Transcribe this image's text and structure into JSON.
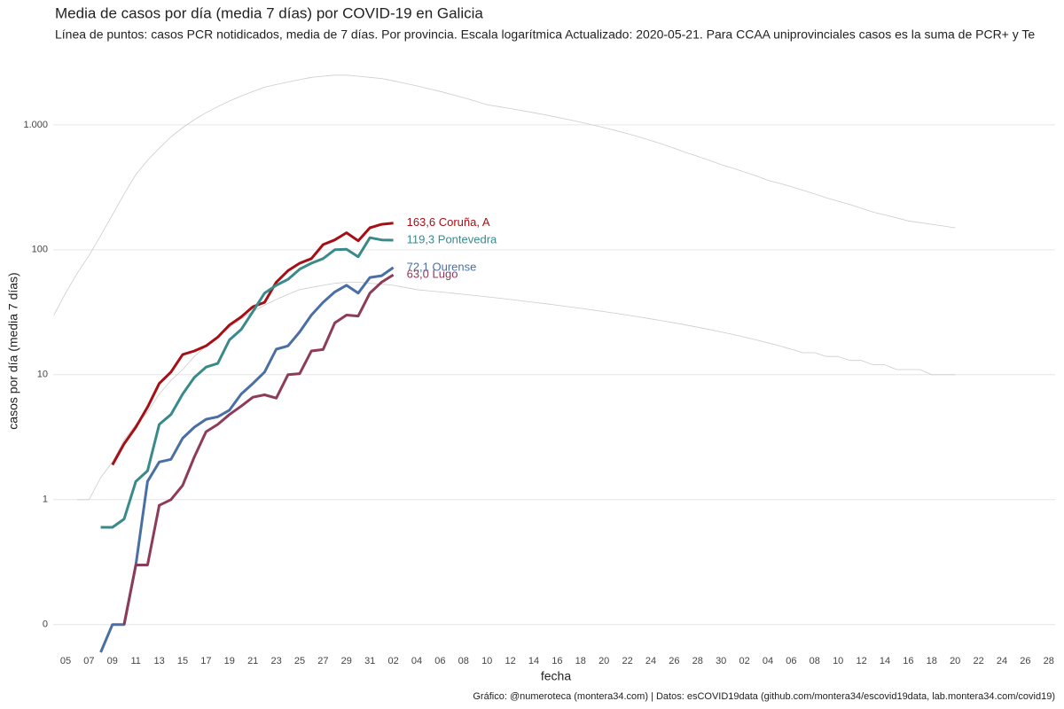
{
  "chart_data": {
    "type": "line",
    "title": "Media de casos por día (media 7 días) por COVID-19 en Galicia",
    "subtitle": "Línea de puntos: casos PCR notidicados, media de 7 días. Por provincia. Escala logarítmica  Actualizado: 2020-05-21. Para CCAA uniprovinciales casos es la suma de PCR+ y Te",
    "x_label": "fecha",
    "y_label": "casos por día (media 7 días)",
    "caption": "Gráfico: @numeroteca (montera34.com) | Datos: esCOVID19data (github.com/montera34/escovid19data, lab.montera34.com/covid19)",
    "log_scale": true,
    "grid": true,
    "ylim": [
      0.06,
      4000
    ],
    "yticks": [
      {
        "value": 0.1,
        "label": "0"
      },
      1,
      10,
      100,
      {
        "value": 1000,
        "label": "1.000"
      }
    ],
    "categories": [
      null,
      "05",
      null,
      "07",
      null,
      "09",
      null,
      "11",
      null,
      "13",
      null,
      "15",
      null,
      "17",
      null,
      "19",
      null,
      "21",
      null,
      "23",
      null,
      "25",
      null,
      "27",
      null,
      "29",
      null,
      "31",
      null,
      "02",
      null,
      "04",
      null,
      "06",
      null,
      "08",
      null,
      "10",
      null,
      "12",
      null,
      "14",
      null,
      "16",
      null,
      "18",
      null,
      "20",
      null,
      "22",
      null,
      "24",
      null,
      "26",
      null,
      "28",
      null,
      "30",
      null,
      "02",
      null,
      "04",
      null,
      "06",
      null,
      "08",
      null,
      "10",
      null,
      "12",
      null,
      "14",
      null,
      "16",
      null,
      "18",
      null,
      "20",
      null,
      "22",
      null,
      "24",
      null,
      "26",
      null,
      "28",
      null
    ],
    "series": [
      {
        "color": "#cccccc",
        "width": 0.8,
        "values": [
          30,
          45,
          65,
          90,
          130,
          190,
          280,
          400,
          520,
          650,
          800,
          950,
          1100,
          1250,
          1400,
          1550,
          1700,
          1850,
          2000,
          2100,
          2200,
          2300,
          2400,
          2450,
          2500,
          2500,
          2450,
          2400,
          2350,
          2250,
          2150,
          2050,
          1950,
          1850,
          1750,
          1650,
          1550,
          1450,
          1400,
          1350,
          1300,
          1250,
          1200,
          1150,
          1100,
          1050,
          1000,
          950,
          900,
          850,
          800,
          750,
          700,
          650,
          600,
          560,
          520,
          480,
          450,
          420,
          390,
          360,
          340,
          320,
          300,
          280,
          260,
          245,
          230,
          215,
          200,
          190,
          180,
          170,
          165,
          160,
          155,
          150,
          null,
          null,
          null,
          null,
          null,
          null,
          null,
          null,
          null
        ]
      },
      {
        "color": "#cccccc",
        "width": 0.8,
        "values": [
          null,
          null,
          1,
          1,
          1.5,
          2,
          3,
          4,
          5,
          7,
          9,
          11,
          14,
          17,
          20,
          24,
          28,
          32,
          36,
          40,
          44,
          48,
          50,
          52,
          54,
          55,
          55,
          54,
          53,
          52,
          50,
          48,
          47,
          46,
          45,
          44,
          43,
          42,
          41,
          40,
          39,
          38,
          37,
          36,
          35,
          34,
          33,
          32,
          31,
          30,
          29,
          28,
          27,
          26,
          25,
          24,
          23,
          22,
          21,
          20,
          19,
          18,
          17,
          16,
          15,
          15,
          14,
          14,
          13,
          13,
          12,
          12,
          11,
          11,
          11,
          10,
          10,
          10,
          null,
          null,
          null,
          null,
          null,
          null,
          null,
          null,
          null
        ]
      },
      {
        "color": "#a50f15",
        "width": 3,
        "end_label": "163,6 Coruña, A",
        "values": [
          null,
          null,
          null,
          null,
          null,
          1.9,
          2.8,
          3.8,
          5.5,
          8.5,
          10.5,
          14.5,
          15.5,
          17,
          20,
          25,
          29,
          35,
          38,
          55,
          68,
          78,
          85,
          110,
          120,
          137,
          118,
          150,
          160,
          163.6,
          null,
          null,
          null,
          null,
          null,
          null,
          null,
          null,
          null,
          null,
          null,
          null,
          null,
          null,
          null,
          null,
          null,
          null,
          null,
          null,
          null,
          null,
          null,
          null,
          null,
          null,
          null,
          null,
          null,
          null,
          null,
          null,
          null,
          null,
          null,
          null,
          null,
          null,
          null,
          null,
          null,
          null,
          null,
          null,
          null,
          null,
          null,
          null,
          null,
          null,
          null,
          null,
          null,
          null,
          null,
          null,
          null
        ]
      },
      {
        "color": "#3a8a8a",
        "width": 3,
        "end_label": "119,3 Pontevedra",
        "values": [
          null,
          null,
          null,
          null,
          0.6,
          0.6,
          0.7,
          1.4,
          1.7,
          4,
          4.8,
          7,
          9.5,
          11.5,
          12.3,
          19,
          23,
          32,
          45,
          52,
          58,
          70,
          78,
          85,
          100,
          101,
          88,
          125,
          120,
          119.3,
          null,
          null,
          null,
          null,
          null,
          null,
          null,
          null,
          null,
          null,
          null,
          null,
          null,
          null,
          null,
          null,
          null,
          null,
          null,
          null,
          null,
          null,
          null,
          null,
          null,
          null,
          null,
          null,
          null,
          null,
          null,
          null,
          null,
          null,
          null,
          null,
          null,
          null,
          null,
          null,
          null,
          null,
          null,
          null,
          null,
          null,
          null,
          null,
          null,
          null,
          null,
          null,
          null,
          null,
          null,
          null,
          null
        ]
      },
      {
        "color": "#4a6fa5",
        "width": 3,
        "end_label": "72,1 Ourense",
        "values": [
          null,
          null,
          null,
          null,
          0.06,
          0.1,
          0.1,
          0.3,
          1.4,
          2,
          2.1,
          3.1,
          3.8,
          4.4,
          4.6,
          5.2,
          7,
          8.5,
          10.5,
          16,
          17,
          22,
          30,
          38,
          46,
          52,
          45,
          60,
          62,
          72.1,
          null,
          null,
          null,
          null,
          null,
          null,
          null,
          null,
          null,
          null,
          null,
          null,
          null,
          null,
          null,
          null,
          null,
          null,
          null,
          null,
          null,
          null,
          null,
          null,
          null,
          null,
          null,
          null,
          null,
          null,
          null,
          null,
          null,
          null,
          null,
          null,
          null,
          null,
          null,
          null,
          null,
          null,
          null,
          null,
          null,
          null,
          null,
          null,
          null,
          null,
          null,
          null,
          null,
          null,
          null,
          null,
          null
        ]
      },
      {
        "color": "#8e3a59",
        "width": 3,
        "end_label": "63,0 Lugo",
        "values": [
          null,
          null,
          null,
          null,
          null,
          null,
          0.1,
          0.3,
          0.3,
          0.9,
          1,
          1.3,
          2.2,
          3.5,
          4,
          4.8,
          5.6,
          6.6,
          6.9,
          6.5,
          10,
          10.2,
          15.5,
          15.9,
          26,
          30,
          29.5,
          45,
          55,
          63.0,
          null,
          null,
          null,
          null,
          null,
          null,
          null,
          null,
          null,
          null,
          null,
          null,
          null,
          null,
          null,
          null,
          null,
          null,
          null,
          null,
          null,
          null,
          null,
          null,
          null,
          null,
          null,
          null,
          null,
          null,
          null,
          null,
          null,
          null,
          null,
          null,
          null,
          null,
          null,
          null,
          null,
          null,
          null,
          null,
          null,
          null,
          null,
          null,
          null,
          null,
          null,
          null,
          null,
          null,
          null,
          null,
          null
        ]
      }
    ]
  }
}
